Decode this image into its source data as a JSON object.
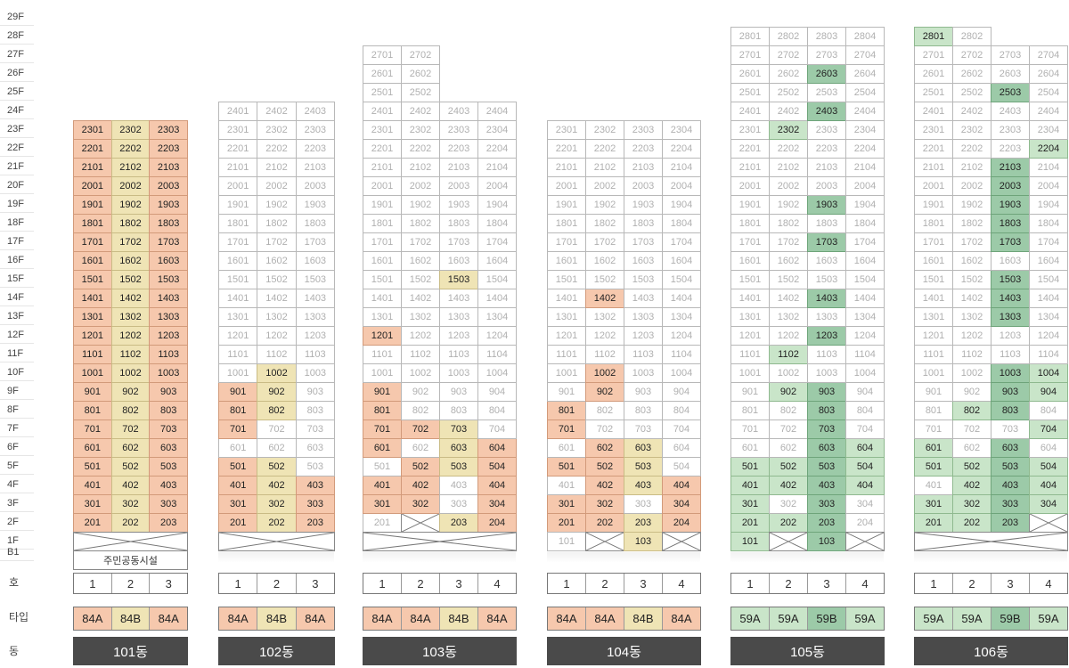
{
  "floors": [
    "29F",
    "28F",
    "27F",
    "26F",
    "25F",
    "24F",
    "23F",
    "22F",
    "21F",
    "20F",
    "19F",
    "18F",
    "17F",
    "16F",
    "15F",
    "14F",
    "13F",
    "12F",
    "11F",
    "10F",
    "9F",
    "8F",
    "7F",
    "6F",
    "5F",
    "4F",
    "3F",
    "2F",
    "1F",
    "B1"
  ],
  "row_labels": {
    "ho": "호",
    "type": "타입",
    "dong": "동"
  },
  "colors": {
    "orange": "#f6c8ad",
    "yellow": "#efe4b5",
    "light_green": "#c9e5c9",
    "dark_green": "#9ccaa8",
    "building_label_bg": "#4a4a4a"
  },
  "buildings": [
    {
      "name": "101동",
      "cols": 3,
      "top": 23,
      "facility": "주민공동시설",
      "ho": [
        "1",
        "2",
        "3"
      ],
      "types": [
        "84A",
        "84B",
        "84A"
      ],
      "type_colors": [
        "o",
        "y",
        "o"
      ],
      "all_colored": true,
      "closed": {
        "1": [
          1,
          2,
          3
        ]
      },
      "colored": {}
    },
    {
      "name": "102동",
      "cols": 3,
      "top": 24,
      "ho": [
        "1",
        "2",
        "3"
      ],
      "types": [
        "84A",
        "84B",
        "84A"
      ],
      "type_colors": [
        "o",
        "y",
        "o"
      ],
      "closed": {
        "1": [
          1,
          2,
          3
        ]
      },
      "colored": {
        "10": {
          "2": "y"
        },
        "9": {
          "1": "o",
          "2": "y"
        },
        "8": {
          "1": "o",
          "2": "y"
        },
        "7": {
          "1": "o"
        },
        "5": {
          "1": "o",
          "2": "y"
        },
        "4": {
          "1": "o",
          "2": "y",
          "3": "o"
        },
        "3": {
          "1": "o",
          "2": "y",
          "3": "o"
        },
        "2": {
          "1": "o",
          "2": "y",
          "3": "o"
        }
      }
    },
    {
      "name": "103동",
      "cols": 4,
      "top": 24,
      "tower_cols": 2,
      "tower_top": 27,
      "ho": [
        "1",
        "2",
        "3",
        "4"
      ],
      "types": [
        "84A",
        "84A",
        "84B",
        "84A"
      ],
      "type_colors": [
        "o",
        "o",
        "y",
        "o"
      ],
      "closed": {
        "1": [
          1,
          2,
          3,
          4
        ],
        "2": [
          2
        ]
      },
      "colored": {
        "15": {
          "3": "y"
        },
        "12": {
          "1": "o"
        },
        "9": {
          "1": "o"
        },
        "8": {
          "1": "o"
        },
        "7": {
          "1": "o",
          "2": "o",
          "3": "y"
        },
        "6": {
          "1": "o",
          "3": "y",
          "4": "o"
        },
        "5": {
          "2": "o",
          "3": "y",
          "4": "o"
        },
        "4": {
          "1": "o",
          "2": "o",
          "4": "o"
        },
        "3": {
          "1": "o",
          "2": "o",
          "4": "o"
        },
        "2": {
          "3": "y",
          "4": "o"
        }
      }
    },
    {
      "name": "104동",
      "cols": 4,
      "top": 23,
      "ho": [
        "1",
        "2",
        "3",
        "4"
      ],
      "types": [
        "84A",
        "84A",
        "84B",
        "84A"
      ],
      "type_colors": [
        "o",
        "o",
        "y",
        "o"
      ],
      "closed": {
        "1": [
          2,
          4
        ]
      },
      "colored": {
        "14": {
          "2": "o"
        },
        "10": {
          "2": "o"
        },
        "9": {
          "2": "o"
        },
        "8": {
          "1": "o"
        },
        "7": {
          "1": "o"
        },
        "6": {
          "2": "o",
          "3": "y"
        },
        "5": {
          "1": "o",
          "2": "o",
          "3": "y"
        },
        "4": {
          "2": "o",
          "3": "y",
          "4": "o"
        },
        "3": {
          "1": "o",
          "2": "o",
          "4": "o"
        },
        "2": {
          "1": "o",
          "2": "o",
          "3": "y",
          "4": "o"
        },
        "1": {
          "3": "y"
        }
      }
    },
    {
      "name": "105동",
      "cols": 4,
      "top": 28,
      "ho": [
        "1",
        "2",
        "3",
        "4"
      ],
      "types": [
        "59A",
        "59A",
        "59B",
        "59A"
      ],
      "type_colors": [
        "g",
        "g",
        "d",
        "g"
      ],
      "closed": {
        "1": [
          2,
          4
        ]
      },
      "colored": {
        "26": {
          "3": "d"
        },
        "24": {
          "3": "d"
        },
        "23": {
          "2": "g"
        },
        "19": {
          "3": "d"
        },
        "17": {
          "3": "d"
        },
        "14": {
          "3": "d"
        },
        "12": {
          "3": "d"
        },
        "11": {
          "2": "g"
        },
        "9": {
          "2": "g",
          "3": "d"
        },
        "8": {
          "3": "d"
        },
        "7": {
          "3": "d"
        },
        "6": {
          "3": "d",
          "4": "g"
        },
        "5": {
          "1": "g",
          "2": "g",
          "3": "d",
          "4": "g"
        },
        "4": {
          "1": "g",
          "2": "g",
          "3": "d",
          "4": "g"
        },
        "3": {
          "1": "g",
          "3": "d"
        },
        "2": {
          "1": "g",
          "2": "g",
          "3": "d"
        },
        "1": {
          "1": "g",
          "3": "d"
        }
      }
    },
    {
      "name": "106동",
      "cols": 4,
      "top": 27,
      "tower_cols": 2,
      "tower_top": 28,
      "ho": [
        "1",
        "2",
        "3",
        "4"
      ],
      "types": [
        "59A",
        "59A",
        "59B",
        "59A"
      ],
      "type_colors": [
        "g",
        "g",
        "d",
        "g"
      ],
      "closed": {
        "1": [
          1,
          2,
          3,
          4
        ],
        "2": [
          4
        ]
      },
      "colored": {
        "28": {
          "1": "g"
        },
        "25": {
          "3": "d"
        },
        "22": {
          "4": "g"
        },
        "21": {
          "3": "d"
        },
        "20": {
          "3": "d"
        },
        "19": {
          "3": "d"
        },
        "18": {
          "3": "d"
        },
        "17": {
          "3": "d"
        },
        "15": {
          "3": "d"
        },
        "14": {
          "3": "d"
        },
        "13": {
          "3": "d"
        },
        "10": {
          "3": "d",
          "4": "g"
        },
        "9": {
          "3": "d",
          "4": "g"
        },
        "8": {
          "2": "g",
          "3": "d"
        },
        "7": {
          "4": "g"
        },
        "6": {
          "1": "g",
          "3": "d"
        },
        "5": {
          "1": "g",
          "2": "g",
          "3": "d",
          "4": "g"
        },
        "4": {
          "2": "g",
          "3": "d",
          "4": "g"
        },
        "3": {
          "1": "g",
          "2": "g",
          "3": "d",
          "4": "g"
        },
        "2": {
          "1": "g",
          "2": "g",
          "3": "d"
        }
      }
    }
  ]
}
